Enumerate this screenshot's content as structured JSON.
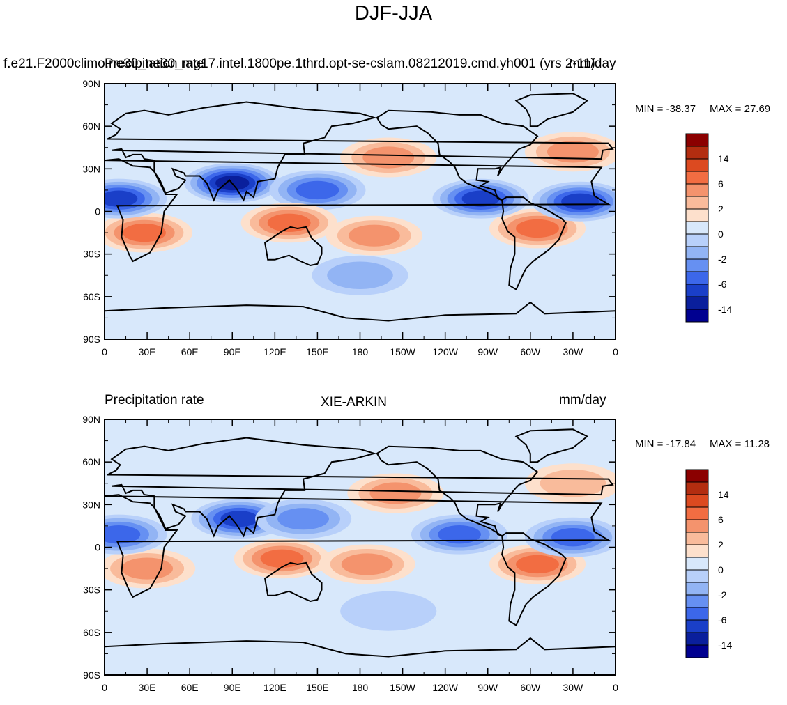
{
  "title": "DJF-JJA",
  "panels": [
    {
      "id": "model",
      "subtitle_left": "f.e21.F2000climo.ne30_ne30_mg17.intel.1800pe.1thrd.opt-se-cslam.08212019.cmd.yh001 (yrs 2-11)",
      "subtitle_center": "Precipitation rate",
      "subtitle_right": "mm/day",
      "min_label": "MIN = -38.37",
      "max_label": "MAX =  27.69"
    },
    {
      "id": "obs",
      "subtitle_left": "Precipitation rate",
      "subtitle_center": "XIE-ARKIN",
      "subtitle_right": "mm/day",
      "min_label": "MIN = -17.84",
      "max_label": "MAX =  11.28"
    }
  ],
  "axes": {
    "lat_labels": [
      "90N",
      "60N",
      "30N",
      "0",
      "30S",
      "60S",
      "90S"
    ],
    "lon_labels": [
      "0",
      "30E",
      "60E",
      "90E",
      "120E",
      "150E",
      "180",
      "150W",
      "120W",
      "90W",
      "60W",
      "30W",
      "0"
    ]
  },
  "colorbar": {
    "colors": [
      "#8b0000",
      "#b32d10",
      "#dc4a20",
      "#f26d42",
      "#f4936d",
      "#f9bb9b",
      "#fde0cc",
      "#d8e8fb",
      "#b8d0fa",
      "#92b4f4",
      "#6690f2",
      "#3c67ea",
      "#1a3fc8",
      "#0a1f9c",
      "#000090"
    ],
    "labels": [
      "14",
      "6",
      "2",
      "0",
      "-2",
      "-6",
      "-14"
    ]
  },
  "chart_data": [
    {
      "type": "filled-contour-map",
      "title": "DJF-JJA",
      "dataset": "f.e21.F2000climo.ne30_ne30_mg17.intel.1800pe.1thrd.opt-se-cslam.08212019.cmd.yh001 (yrs 2-11)",
      "variable": "Precipitation rate",
      "units": "mm/day",
      "min": -38.37,
      "max": 27.69,
      "xlim": [
        0,
        360
      ],
      "ylim": [
        -90,
        90
      ],
      "contour_levels": [
        -20,
        -14,
        -10,
        -6,
        -4,
        -2,
        -1,
        0,
        1,
        2,
        4,
        6,
        10,
        14,
        20
      ],
      "features": [
        {
          "name": "wet-southern-africa",
          "lon": 28,
          "lat": -15,
          "value": 6
        },
        {
          "name": "dry-south-asian-monsoon",
          "lon": 90,
          "lat": 20,
          "value": -14
        },
        {
          "name": "dry-west-pacific",
          "lon": 150,
          "lat": 15,
          "value": -6
        },
        {
          "name": "wet-north-pacific",
          "lon": 200,
          "lat": 38,
          "value": 4
        },
        {
          "name": "wet-maritime-continent",
          "lon": 130,
          "lat": -8,
          "value": 6
        },
        {
          "name": "wet-spcz",
          "lon": 190,
          "lat": -17,
          "value": 4
        },
        {
          "name": "wet-amazon",
          "lon": 305,
          "lat": -12,
          "value": 6
        },
        {
          "name": "dry-itcz-east-pacific",
          "lon": 265,
          "lat": 9,
          "value": -10
        },
        {
          "name": "dry-itcz-atlantic",
          "lon": 335,
          "lat": 7,
          "value": -10
        },
        {
          "name": "wet-north-atlantic",
          "lon": 330,
          "lat": 42,
          "value": 4
        },
        {
          "name": "dry-southern-ocean-band",
          "lon": 180,
          "lat": -45,
          "value": -2
        },
        {
          "name": "dry-north-africa-itcz",
          "lon": 10,
          "lat": 9,
          "value": -10
        }
      ]
    },
    {
      "type": "filled-contour-map",
      "title": "DJF-JJA",
      "dataset": "XIE-ARKIN",
      "variable": "Precipitation rate",
      "units": "mm/day",
      "min": -17.84,
      "max": 11.28,
      "xlim": [
        0,
        360
      ],
      "ylim": [
        -90,
        90
      ],
      "contour_levels": [
        -20,
        -14,
        -10,
        -6,
        -4,
        -2,
        -1,
        0,
        1,
        2,
        4,
        6,
        10,
        14,
        20
      ],
      "features": [
        {
          "name": "wet-southern-africa",
          "lon": 30,
          "lat": -15,
          "value": 4
        },
        {
          "name": "dry-south-asian-monsoon",
          "lon": 95,
          "lat": 20,
          "value": -10
        },
        {
          "name": "dry-west-pacific",
          "lon": 140,
          "lat": 20,
          "value": -4
        },
        {
          "name": "wet-north-pacific",
          "lon": 205,
          "lat": 38,
          "value": 4
        },
        {
          "name": "wet-maritime-continent",
          "lon": 125,
          "lat": -8,
          "value": 6
        },
        {
          "name": "wet-spcz",
          "lon": 185,
          "lat": -12,
          "value": 4
        },
        {
          "name": "wet-amazon",
          "lon": 305,
          "lat": -12,
          "value": 6
        },
        {
          "name": "dry-itcz-pacific",
          "lon": 250,
          "lat": 9,
          "value": -6
        },
        {
          "name": "dry-itcz-atlantic",
          "lon": 330,
          "lat": 7,
          "value": -6
        },
        {
          "name": "wet-north-atlantic",
          "lon": 330,
          "lat": 45,
          "value": 2
        },
        {
          "name": "dry-southern-ocean-band",
          "lon": 200,
          "lat": -45,
          "value": -1
        },
        {
          "name": "dry-north-africa-itcz",
          "lon": 10,
          "lat": 9,
          "value": -6
        }
      ]
    }
  ]
}
